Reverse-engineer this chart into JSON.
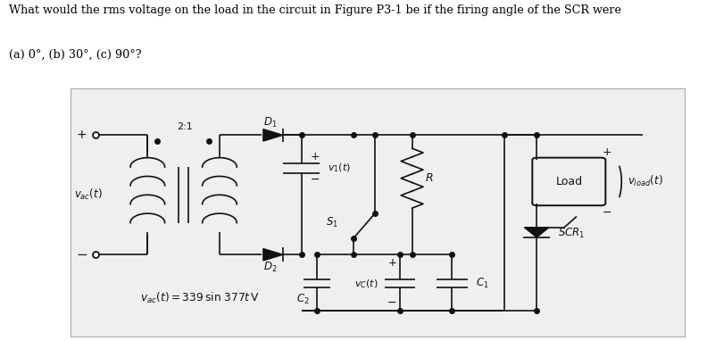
{
  "title_line1": "What would the rms voltage on the load in the circuit in Figure P3-1 be if the firing angle of the SCR were",
  "title_line2": "(a) 0°, (b) 30°, (c) 90°?",
  "fig_width": 7.92,
  "fig_height": 3.82,
  "circuit_bg": "#efefef",
  "line_color": "#111111",
  "lw": 1.2
}
